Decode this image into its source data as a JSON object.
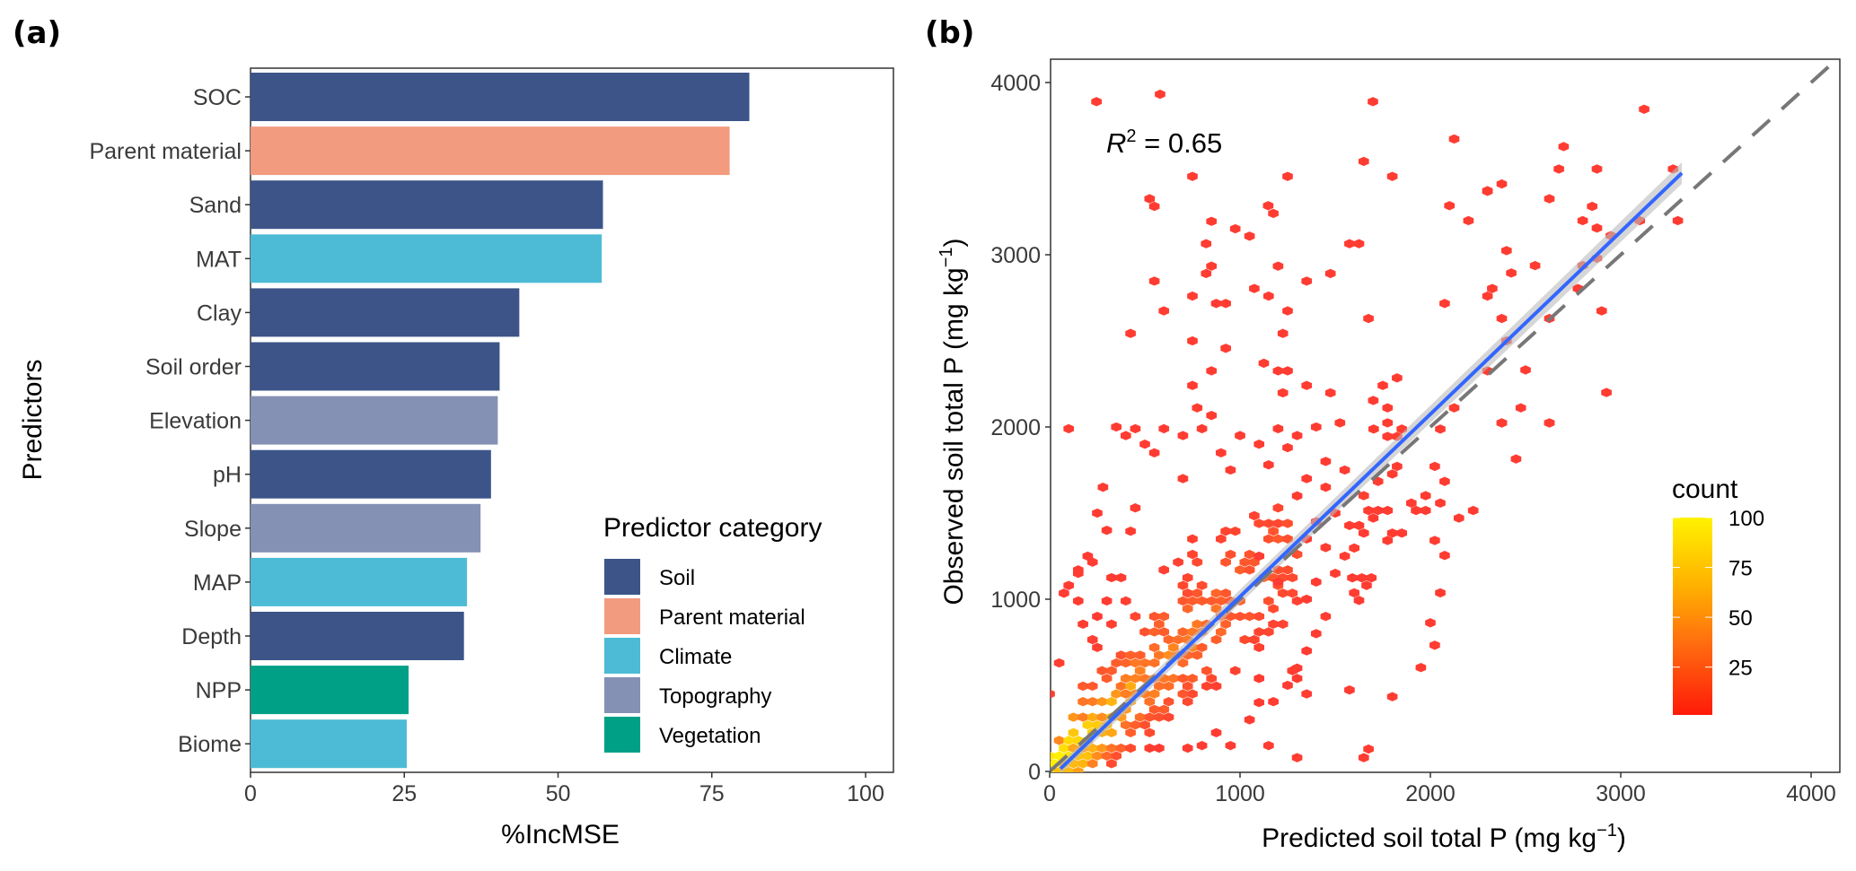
{
  "figure": {
    "panel_a_label": "(a)",
    "panel_b_label": "(b)"
  },
  "chart_data": [
    {
      "type": "bar",
      "orientation": "horizontal",
      "panel": "(a)",
      "xlabel": "%IncMSE",
      "ylabel": "Predictors",
      "xlim": [
        0,
        105
      ],
      "xticks": [
        0,
        25,
        50,
        75,
        100
      ],
      "xtick_labels": [
        "0",
        "25",
        "50",
        "75",
        "100"
      ],
      "grid": false,
      "categories": [
        "SOC",
        "Parent material",
        "Sand",
        "MAT",
        "Clay",
        "Soil order",
        "Elevation",
        "pH",
        "Slope",
        "MAP",
        "Depth",
        "NPP",
        "Biome"
      ],
      "values": [
        81.1,
        77.9,
        57.3,
        57.1,
        43.7,
        40.5,
        40.2,
        39.1,
        37.4,
        35.2,
        34.7,
        25.7,
        25.4
      ],
      "groups": [
        "Soil",
        "Parent material",
        "Soil",
        "Climate",
        "Soil",
        "Soil",
        "Topography",
        "Soil",
        "Topography",
        "Climate",
        "Soil",
        "Vegetation",
        "Climate"
      ],
      "legend": {
        "title": "Predictor category",
        "placement": "bottom-right",
        "entries": [
          {
            "name": "Soil",
            "color": "#3C5488"
          },
          {
            "name": "Parent material",
            "color": "#F39B7F"
          },
          {
            "name": "Climate",
            "color": "#4DBBD5"
          },
          {
            "name": "Topography",
            "color": "#8491B4"
          },
          {
            "name": "Vegetation",
            "color": "#00A087"
          }
        ]
      }
    },
    {
      "type": "hexbin-scatter",
      "panel": "(b)",
      "xlabel": "Predicted soil total P (mg kg",
      "xlabel_sup": "−1",
      "xlabel_end": ")",
      "ylabel": "Observed soil total P (mg kg",
      "ylabel_sup": "−1",
      "ylabel_end": ")",
      "xlim": [
        0,
        4150
      ],
      "ylim": [
        0,
        4150
      ],
      "xticks": [
        0,
        1000,
        2000,
        3000,
        4000
      ],
      "yticks": [
        0,
        1000,
        2000,
        3000,
        4000
      ],
      "xtick_labels": [
        "0",
        "1000",
        "2000",
        "3000",
        "4000"
      ],
      "ytick_labels": [
        "0",
        "1000",
        "2000",
        "3000",
        "4000"
      ],
      "grid": false,
      "annotation": {
        "r2_label": "R",
        "r2_sup": "2",
        "r2_text": " = 0.65",
        "r2_value": 0.65
      },
      "fit_line": {
        "x": [
          57,
          3321
        ],
        "y": [
          16,
          3474
        ],
        "color": "#3366FF",
        "band_color": "#BBBBBB"
      },
      "one_to_one_line": {
        "x": [
          0,
          4150
        ],
        "y": [
          0,
          4150
        ],
        "color": "#777777",
        "style": "dashed"
      },
      "colorbar": {
        "title": "count",
        "placement": "right",
        "range": [
          1,
          100
        ],
        "ticks": [
          25,
          50,
          75,
          100
        ],
        "tick_labels": [
          "25",
          "50",
          "75",
          "100"
        ],
        "low_color": "#FF2A10",
        "high_color": "#FFF000"
      },
      "hex_binwidth": [
        50,
        45
      ],
      "dense_cluster": {
        "description": "main hexbin mass along 1:1 line",
        "x_range": [
          0,
          1300
        ],
        "y_range": [
          0,
          1550
        ],
        "center_slope": 1.05,
        "spread": 380,
        "peak_count": 100
      },
      "outlier_cells": [
        [
          246,
          3889,
          1
        ],
        [
          580,
          3932,
          1
        ],
        [
          1698,
          3889,
          1
        ],
        [
          2125,
          3672,
          1
        ],
        [
          1650,
          3542,
          1
        ],
        [
          1800,
          3455,
          1
        ],
        [
          750,
          3455,
          1
        ],
        [
          1250,
          3455,
          1
        ],
        [
          525,
          3325,
          1
        ],
        [
          550,
          3281,
          1
        ],
        [
          1148,
          3285,
          1
        ],
        [
          1175,
          3240,
          1
        ],
        [
          850,
          3194,
          1
        ],
        [
          975,
          3151,
          1
        ],
        [
          1050,
          3108,
          1
        ],
        [
          2300,
          3372,
          1
        ],
        [
          2100,
          3285,
          1
        ],
        [
          2200,
          3198,
          1
        ],
        [
          822,
          3064,
          1
        ],
        [
          1575,
          3064,
          1
        ],
        [
          1625,
          3064,
          1
        ],
        [
          850,
          2934,
          1
        ],
        [
          822,
          2891,
          1
        ],
        [
          1200,
          2934,
          1
        ],
        [
          1475,
          2891,
          1
        ],
        [
          1350,
          2847,
          1
        ],
        [
          550,
          2847,
          1
        ],
        [
          750,
          2760,
          1
        ],
        [
          1075,
          2804,
          1
        ],
        [
          1150,
          2760,
          1
        ],
        [
          875,
          2717,
          1
        ],
        [
          925,
          2717,
          1
        ],
        [
          600,
          2674,
          1
        ],
        [
          1250,
          2674,
          1
        ],
        [
          1675,
          2630,
          1
        ],
        [
          2075,
          2717,
          1
        ],
        [
          2325,
          2804,
          1
        ],
        [
          2300,
          2760,
          1
        ],
        [
          425,
          2543,
          1
        ],
        [
          750,
          2500,
          1
        ],
        [
          1225,
          2543,
          1
        ],
        [
          925,
          2457,
          1
        ],
        [
          850,
          2326,
          1
        ],
        [
          1125,
          2370,
          1
        ],
        [
          1200,
          2326,
          1
        ],
        [
          1250,
          2326,
          1
        ],
        [
          750,
          2241,
          1
        ],
        [
          1350,
          2241,
          1
        ],
        [
          1475,
          2198,
          1
        ],
        [
          1225,
          2198,
          1
        ],
        [
          1750,
          2241,
          1
        ],
        [
          1825,
          2285,
          1
        ],
        [
          1700,
          2154,
          1
        ],
        [
          1775,
          2111,
          1
        ],
        [
          775,
          2111,
          1
        ],
        [
          850,
          2067,
          1
        ],
        [
          1775,
          2024,
          1
        ],
        [
          1525,
          2024,
          1
        ],
        [
          2125,
          2111,
          1
        ],
        [
          2300,
          2326,
          1
        ],
        [
          3123,
          3845,
          1
        ],
        [
          2700,
          3628,
          1
        ],
        [
          2675,
          3498,
          1
        ],
        [
          2875,
          3498,
          1
        ],
        [
          3275,
          3498,
          1
        ],
        [
          2375,
          3411,
          1
        ],
        [
          2300,
          3368,
          1
        ],
        [
          2625,
          3325,
          1
        ],
        [
          2850,
          3281,
          1
        ],
        [
          2800,
          3198,
          1
        ],
        [
          2875,
          3155,
          1
        ],
        [
          3100,
          3198,
          1
        ],
        [
          3300,
          3198,
          1
        ],
        [
          2948,
          3111,
          1
        ],
        [
          2400,
          3024,
          1
        ],
        [
          2550,
          2937,
          1
        ],
        [
          2425,
          2894,
          1
        ],
        [
          2875,
          2980,
          1
        ],
        [
          2800,
          2937,
          1
        ],
        [
          2775,
          2804,
          1
        ],
        [
          2375,
          2630,
          1
        ],
        [
          2625,
          2630,
          1
        ],
        [
          2900,
          2674,
          1
        ],
        [
          2400,
          2500,
          1
        ],
        [
          2500,
          2331,
          1
        ],
        [
          2925,
          2200,
          1
        ],
        [
          2475,
          2111,
          1
        ],
        [
          2375,
          2024,
          1
        ],
        [
          2625,
          2024,
          1
        ],
        [
          1702,
          1988,
          1
        ],
        [
          1775,
          1945,
          1
        ],
        [
          1850,
          1988,
          1
        ],
        [
          1825,
          1945,
          1
        ],
        [
          2052,
          1988,
          1
        ],
        [
          2375,
          2023,
          1
        ],
        [
          2625,
          2023,
          1
        ],
        [
          2450,
          1814,
          1
        ],
        [
          2023,
          1771,
          1
        ],
        [
          2075,
          1684,
          1
        ],
        [
          1725,
          1684,
          1
        ],
        [
          1800,
          1727,
          1
        ],
        [
          1825,
          1771,
          1
        ],
        [
          1975,
          1601,
          1
        ],
        [
          2052,
          1558,
          1
        ],
        [
          1900,
          1558,
          1
        ],
        [
          1925,
          1515,
          1
        ],
        [
          1975,
          1515,
          1
        ],
        [
          2225,
          1515,
          1
        ],
        [
          2150,
          1471,
          1
        ],
        [
          1650,
          1601,
          2
        ],
        [
          1675,
          1515,
          1
        ],
        [
          1700,
          1471,
          1
        ],
        [
          1725,
          1515,
          1
        ],
        [
          1775,
          1515,
          1
        ],
        [
          1575,
          1428,
          1
        ],
        [
          1625,
          1428,
          1
        ],
        [
          1650,
          1384,
          1
        ],
        [
          1775,
          1341,
          1
        ],
        [
          1800,
          1384,
          1
        ],
        [
          1850,
          1384,
          1
        ],
        [
          1600,
          1297,
          1
        ],
        [
          2023,
          1341,
          1
        ],
        [
          2075,
          1254,
          1
        ],
        [
          1590,
          1124,
          1
        ],
        [
          1640,
          1124,
          1
        ],
        [
          1690,
          1124,
          1
        ],
        [
          1665,
          1080,
          1
        ],
        [
          1600,
          1037,
          1
        ],
        [
          1625,
          993,
          1
        ],
        [
          2052,
          1037,
          1
        ],
        [
          2000,
          863,
          1
        ],
        [
          2023,
          733,
          1
        ],
        [
          1950,
          603,
          1
        ],
        [
          1575,
          473,
          1
        ],
        [
          1800,
          434,
          1
        ],
        [
          1675,
          130,
          1
        ],
        [
          100,
          1990,
          1
        ],
        [
          350,
          2000,
          1
        ],
        [
          400,
          1950,
          1
        ],
        [
          450,
          1990,
          1
        ],
        [
          500,
          1900,
          1
        ],
        [
          600,
          1990,
          1
        ],
        [
          700,
          1950,
          1
        ],
        [
          800,
          1990,
          1
        ],
        [
          1000,
          1950,
          1
        ],
        [
          1100,
          1900,
          1
        ],
        [
          1200,
          1990,
          1
        ],
        [
          1300,
          1950,
          1
        ],
        [
          1400,
          2000,
          1
        ],
        [
          550,
          1850,
          1
        ],
        [
          900,
          1850,
          1
        ],
        [
          1250,
          1880,
          1
        ],
        [
          1450,
          1800,
          1
        ],
        [
          1550,
          1750,
          1
        ],
        [
          1350,
          1700,
          1
        ],
        [
          700,
          1700,
          1
        ],
        [
          950,
          1750,
          1
        ],
        [
          1150,
          1780,
          1
        ],
        [
          1300,
          1600,
          1
        ],
        [
          1450,
          1650,
          1
        ],
        [
          1500,
          1500,
          1
        ],
        [
          1400,
          1450,
          1
        ],
        [
          1350,
          1350,
          1
        ],
        [
          1450,
          1300,
          1
        ],
        [
          1550,
          1250,
          1
        ],
        [
          1500,
          1150,
          1
        ],
        [
          1400,
          1100,
          1
        ],
        [
          1350,
          1000,
          1
        ],
        [
          1450,
          900,
          1
        ],
        [
          1400,
          800,
          1
        ],
        [
          1350,
          700,
          1
        ],
        [
          1300,
          600,
          1
        ],
        [
          1250,
          500,
          1
        ],
        [
          1350,
          450,
          1
        ],
        [
          1100,
          400,
          1
        ],
        [
          1050,
          300,
          1
        ],
        [
          950,
          150,
          1
        ],
        [
          1150,
          150,
          1
        ],
        [
          1300,
          80,
          1
        ],
        [
          1650,
          80,
          1
        ],
        [
          800,
          150,
          1
        ],
        [
          200,
          1250,
          1
        ],
        [
          150,
          1150,
          1
        ],
        [
          280,
          1650,
          1
        ],
        [
          300,
          1400,
          1
        ],
        [
          250,
          1500,
          1
        ],
        [
          1100,
          1250,
          1
        ],
        [
          1200,
          1100,
          1
        ]
      ]
    }
  ]
}
